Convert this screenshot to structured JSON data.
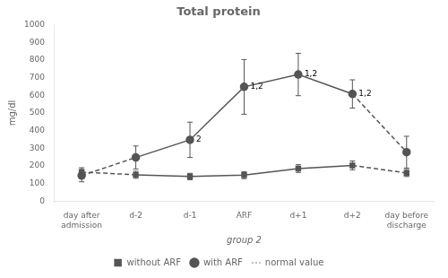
{
  "chart_data": {
    "type": "line",
    "title": "Total protein",
    "ylabel": "mg/dl",
    "xlabel": "group 2",
    "categories": [
      "day after\nadmission",
      "d-2",
      "d-1",
      "ARF",
      "d+1",
      "d+2",
      "day before\ndischarge"
    ],
    "series": [
      {
        "name": "without ARF",
        "color": "#555555",
        "marker": "square",
        "values": [
          165,
          150,
          140,
          148,
          185,
          203,
          160
        ],
        "errors": [
          25,
          20,
          18,
          20,
          22,
          25,
          20
        ]
      },
      {
        "name": "with ARF",
        "color": "#555555",
        "marker": "circle",
        "values": [
          145,
          248,
          348,
          648,
          718,
          608,
          278
        ],
        "errors": [
          35,
          65,
          100,
          155,
          120,
          80,
          90
        ]
      },
      {
        "name": "normal value",
        "color": "#aaaaaa",
        "line_style": "dotted",
        "values": [
          null,
          null,
          null,
          null,
          null,
          null,
          null
        ]
      }
    ],
    "annotations": [
      {
        "x": "ARF",
        "y": 648,
        "text": "1,2"
      },
      {
        "x": "d+1",
        "y": 718,
        "text": "1,2"
      },
      {
        "x": "d+2",
        "y": 608,
        "text": "1,2"
      },
      {
        "x": "d-1",
        "y": 348,
        "text": "2"
      }
    ],
    "ylim": [
      0,
      1000
    ],
    "yticks": [
      0,
      100,
      200,
      300,
      400,
      500,
      600,
      700,
      800,
      900,
      1000
    ],
    "grid": false,
    "legend": "bottom"
  }
}
